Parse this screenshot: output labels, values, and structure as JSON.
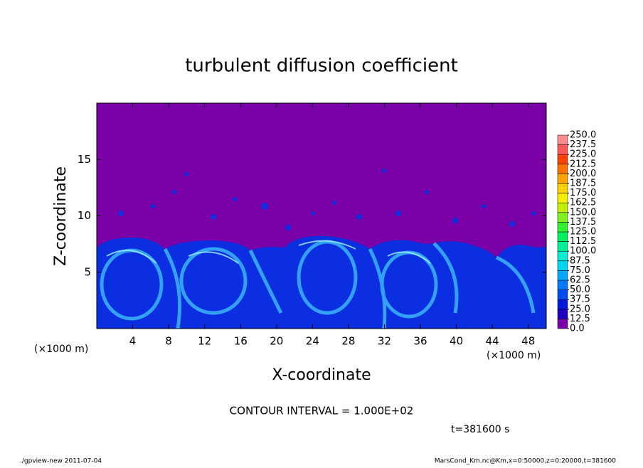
{
  "chart_data": {
    "type": "contour",
    "title": "turbulent diffusion coefficient",
    "x_label": "X-coordinate",
    "y_label": "Z-coordinate",
    "x_unit": "(×1000 m)",
    "y_unit": "(×1000 m)",
    "xlim": [
      0,
      50
    ],
    "ylim": [
      0,
      20
    ],
    "xticks": [
      4,
      8,
      12,
      16,
      20,
      24,
      28,
      32,
      36,
      40,
      44,
      48
    ],
    "yticks": [
      5,
      10,
      15
    ],
    "colorbar": {
      "levels": [
        {
          "value": 0,
          "label": "0.0"
        },
        12.5,
        {
          "value": 25,
          "label": "25.0"
        },
        37.5,
        {
          "value": 50,
          "label": "50.0"
        },
        62.5,
        {
          "value": 75,
          "label": "75.0"
        },
        87.5,
        {
          "value": 100,
          "label": "100.0"
        },
        112.5,
        {
          "value": 125,
          "label": "125.0"
        },
        137.5,
        {
          "value": 150,
          "label": "150.0"
        },
        162.5,
        {
          "value": 175,
          "label": "175.0"
        },
        187.5,
        {
          "value": 200,
          "label": "200.0"
        },
        212.5,
        {
          "value": 225,
          "label": "225.0"
        },
        237.5,
        {
          "value": 250,
          "label": "250.0"
        }
      ],
      "colors": [
        "#7a00a8",
        "#2000c0",
        "#0018dc",
        "#0048f0",
        "#0078ff",
        "#00a8ff",
        "#00d4f4",
        "#00ecd0",
        "#00f098",
        "#00f060",
        "#30f030",
        "#80f020",
        "#c4f000",
        "#f4f000",
        "#ffd000",
        "#ffa400",
        "#ff7400",
        "#ff4400",
        "#ff5a5a",
        "#ff8c8c"
      ]
    },
    "contour_interval": "CONTOUR INTERVAL = 1.000E+02",
    "time_label": "t=381600 s",
    "footer_left": "./gpview-new  2011-07-04",
    "footer_right": "MarsCond_Km.nc@Km,x=0:50000,z=0:20000,t=381600"
  }
}
